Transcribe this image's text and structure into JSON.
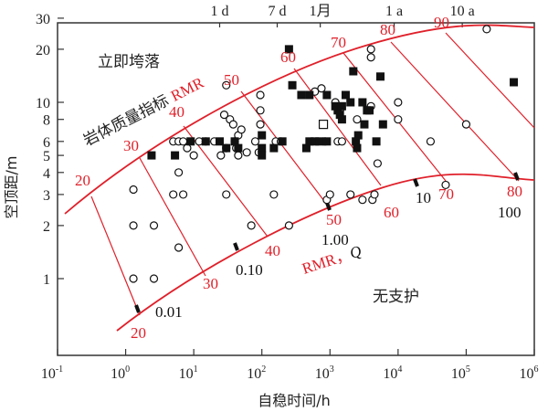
{
  "chart_data": {
    "type": "scatter",
    "title": "",
    "xlabel": "自稳时间/h",
    "ylabel": "空顶距/m",
    "x_scale": "log",
    "y_scale": "log",
    "xlim": [
      0.1,
      1000000
    ],
    "ylim": [
      0.5,
      30
    ],
    "x_ticks": [
      "10^-1",
      "10^0",
      "10^1",
      "10^2",
      "10^3",
      "10^4",
      "10^5",
      "10^6"
    ],
    "y_ticks": [
      "1",
      "2",
      "3",
      "4",
      "5",
      "6",
      "8",
      "10",
      "20",
      "30"
    ],
    "top_axis_ticks": [
      {
        "label": "1 d",
        "hours": 24
      },
      {
        "label": "7 d",
        "hours": 168
      },
      {
        "label": "1月",
        "hours": 720
      },
      {
        "label": "1 a",
        "hours": 8760
      },
      {
        "label": "10 a",
        "hours": 87600
      }
    ],
    "regions": [
      {
        "label": "立即垮落",
        "position": "upper-left"
      },
      {
        "label": "无支护",
        "position": "lower-right"
      }
    ],
    "upper_curve_label": "岩体质量指标 RMR",
    "lower_curve_label": "RMR，Q",
    "rmr_lines": [
      20,
      30,
      40,
      50,
      60,
      70,
      80,
      90
    ],
    "rmr_lower_labels": [
      20,
      30,
      40,
      50,
      60,
      70,
      80
    ],
    "q_values": [
      "0.01",
      "0.10",
      "1.00",
      "10",
      "100"
    ],
    "series": [
      {
        "name": "open-circle",
        "marker": "circle-open",
        "points": [
          [
            1.3,
            3.2
          ],
          [
            1.3,
            2.0
          ],
          [
            2.6,
            2.0
          ],
          [
            1.3,
            1.0
          ],
          [
            2.6,
            1.0
          ],
          [
            6,
            1.5
          ],
          [
            6,
            4.0
          ],
          [
            5,
            3.0
          ],
          [
            7,
            3.0
          ],
          [
            5,
            6.0
          ],
          [
            6,
            6.0
          ],
          [
            7,
            6.0
          ],
          [
            8,
            5.5
          ],
          [
            10,
            5.0
          ],
          [
            12,
            6.0
          ],
          [
            15,
            6.0
          ],
          [
            20,
            6.0
          ],
          [
            25,
            5.0
          ],
          [
            30,
            3.0
          ],
          [
            30,
            5.5
          ],
          [
            28,
            8.5
          ],
          [
            34,
            8.0
          ],
          [
            38,
            7.5
          ],
          [
            30,
            12.5
          ],
          [
            40,
            6.0
          ],
          [
            42,
            5.5
          ],
          [
            45,
            6.5
          ],
          [
            45,
            5.0
          ],
          [
            50,
            7.0
          ],
          [
            60,
            5.2
          ],
          [
            70,
            2.0
          ],
          [
            80,
            6.0
          ],
          [
            90,
            5.2
          ],
          [
            95,
            7.5
          ],
          [
            95,
            9.0
          ],
          [
            95,
            11.0
          ],
          [
            150,
            3.0
          ],
          [
            160,
            6.0
          ],
          [
            190,
            6.0
          ],
          [
            250,
            2.0
          ],
          [
            600,
            11.5
          ],
          [
            750,
            12.0
          ],
          [
            850,
            6.0
          ],
          [
            900,
            2.8
          ],
          [
            1000,
            3.0
          ],
          [
            1300,
            6.0
          ],
          [
            1500,
            6.0
          ],
          [
            1200,
            10.0
          ],
          [
            1400,
            9.0
          ],
          [
            2000,
            3.0
          ],
          [
            2500,
            8.0
          ],
          [
            3000,
            2.8
          ],
          [
            4000,
            18.0
          ],
          [
            4000,
            20.0
          ],
          [
            4000,
            9.5
          ],
          [
            5000,
            4.5
          ],
          [
            4200,
            2.8
          ],
          [
            4500,
            3.0
          ],
          [
            10000,
            10.0
          ],
          [
            10000,
            8.0
          ],
          [
            30000,
            6.0
          ],
          [
            50000,
            3.4
          ],
          [
            100000,
            7.5
          ],
          [
            200000,
            26.0
          ]
        ]
      },
      {
        "name": "filled-square",
        "marker": "square-filled",
        "points": [
          [
            2.4,
            5.0
          ],
          [
            5.3,
            5.0
          ],
          [
            9,
            6.0
          ],
          [
            15,
            6.0
          ],
          [
            24,
            6.0
          ],
          [
            30,
            5.5
          ],
          [
            40,
            6.0
          ],
          [
            45,
            5.5
          ],
          [
            100,
            6.5
          ],
          [
            100,
            5.5
          ],
          [
            100,
            5.0
          ],
          [
            150,
            5.5
          ],
          [
            200,
            6.0
          ],
          [
            250,
            20.0
          ],
          [
            280,
            12.5
          ],
          [
            380,
            11.0
          ],
          [
            450,
            5.5
          ],
          [
            500,
            6.0
          ],
          [
            500,
            11.0
          ],
          [
            600,
            6.0
          ],
          [
            700,
            6.0
          ],
          [
            900,
            6.0
          ],
          [
            900,
            11.0
          ],
          [
            1200,
            9.5
          ],
          [
            1300,
            9.0
          ],
          [
            1400,
            8.5
          ],
          [
            1500,
            9.5
          ],
          [
            1500,
            8.0
          ],
          [
            2000,
            10.0
          ],
          [
            2200,
            15.0
          ],
          [
            2400,
            6.0
          ],
          [
            2600,
            6.5
          ],
          [
            3000,
            10.0
          ],
          [
            3200,
            7.5
          ],
          [
            3500,
            9.0
          ],
          [
            3800,
            9.0
          ],
          [
            4800,
            6.0
          ],
          [
            5500,
            14.0
          ],
          [
            6000,
            7.5
          ],
          [
            500000,
            13.0
          ],
          [
            1700,
            11.0
          ],
          [
            2500,
            5.5
          ]
        ]
      },
      {
        "name": "open-square",
        "marker": "square-open",
        "points": [
          [
            800,
            7.5
          ]
        ]
      }
    ],
    "colors": {
      "axis": "#333333",
      "curve": "#e0202a",
      "marker": "#111111",
      "q_label": "#111111",
      "rmr_label": "#e0202a"
    }
  }
}
